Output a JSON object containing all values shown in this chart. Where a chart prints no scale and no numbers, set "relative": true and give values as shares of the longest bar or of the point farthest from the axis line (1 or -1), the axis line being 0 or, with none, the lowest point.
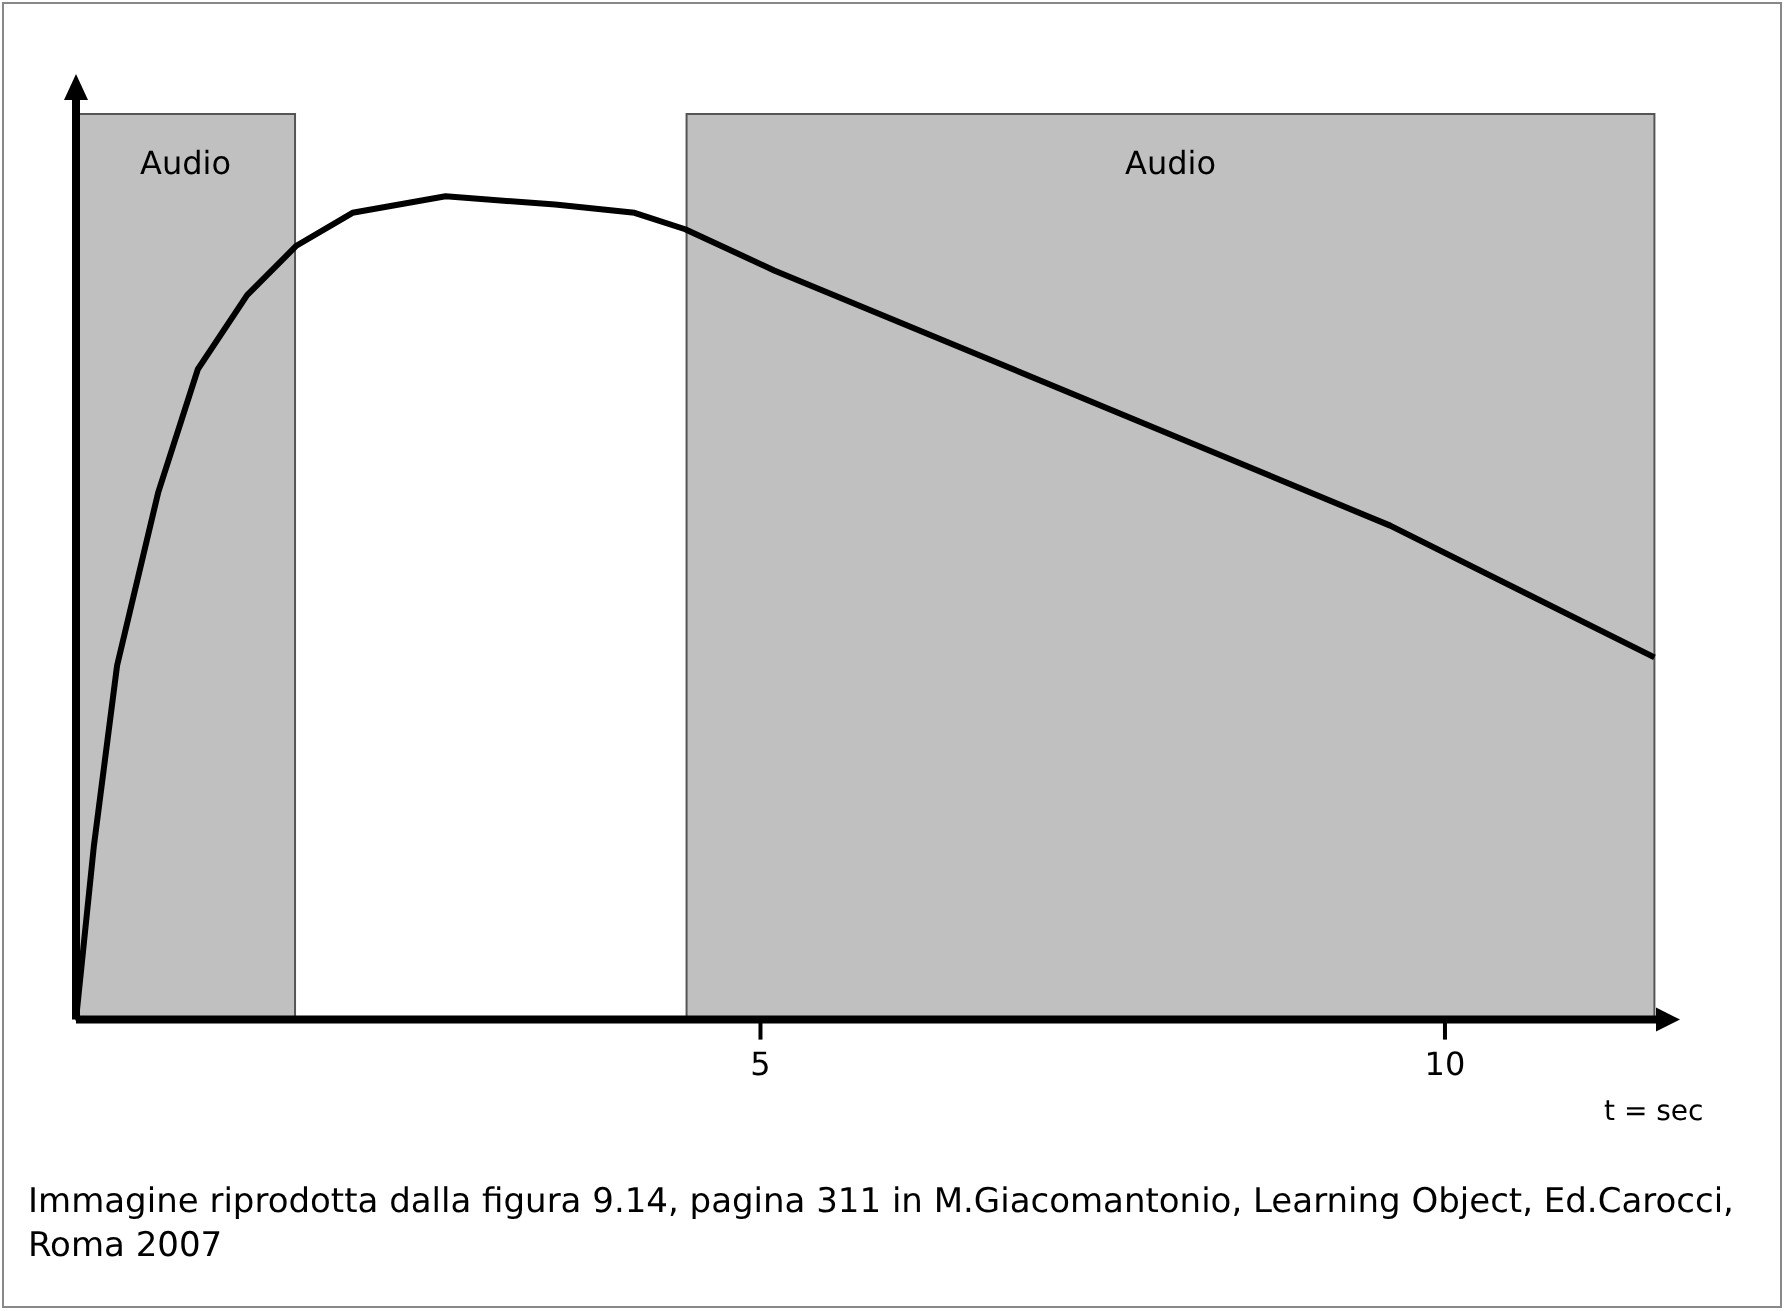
{
  "chart_data": {
    "type": "line",
    "relative": true,
    "xlabel": "t = sec",
    "x": [
      0,
      0.13,
      0.3,
      0.6,
      0.89,
      1.25,
      1.61,
      2.02,
      2.7,
      3.5,
      4.08,
      4.45,
      5.1,
      6.7,
      8.15,
      9.6,
      11.53
    ],
    "series": [
      {
        "color": "#000000",
        "values": [
          0,
          0.21,
          0.43,
          0.64,
          0.79,
          0.88,
          0.94,
          0.98,
          1,
          0.99,
          0.98,
          0.96,
          0.91,
          0.8,
          0.7,
          0.6,
          0.44
        ]
      }
    ],
    "xlim": [
      0,
      11.6
    ],
    "xticks": [
      5,
      10
    ],
    "legend": false,
    "marker": "none",
    "line_style": "solid",
    "tick_labels": "x",
    "bands": [
      {
        "axis": "x",
        "from": 0,
        "to": 1.6,
        "label": "Audio",
        "color": "#c0c0c0"
      },
      {
        "axis": "x",
        "from": 4.46,
        "to": 11.53,
        "label": "Audio",
        "color": "#c0c0c0"
      }
    ],
    "annotations": [
      "Immagine riprodotta dalla figura 9.14, pagina 311 in M.Giacomantonio, Learning Object, Ed.Carocci, Roma 2007"
    ]
  }
}
